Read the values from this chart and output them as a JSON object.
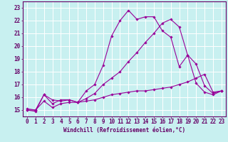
{
  "background_color": "#c8f0f0",
  "grid_color": "#aadddd",
  "line_color": "#990099",
  "xlabel": "Windchill (Refroidissement éolien,°C)",
  "xlabel_color": "#660066",
  "xlabel_fontsize": 5.5,
  "tick_color": "#660066",
  "tick_fontsize": 5.5,
  "xlim": [
    -0.5,
    23.5
  ],
  "ylim": [
    14.5,
    23.5
  ],
  "yticks": [
    15,
    16,
    17,
    18,
    19,
    20,
    21,
    22,
    23
  ],
  "xticks": [
    0,
    1,
    2,
    3,
    4,
    5,
    6,
    7,
    8,
    9,
    10,
    11,
    12,
    13,
    14,
    15,
    16,
    17,
    18,
    19,
    20,
    21,
    22,
    23
  ],
  "series": [
    {
      "x": [
        0,
        1,
        2,
        3,
        4,
        5,
        6,
        7,
        8,
        9,
        10,
        11,
        12,
        13,
        14,
        15,
        16,
        17,
        18,
        19,
        20,
        21,
        22,
        23
      ],
      "y": [
        15.0,
        14.9,
        16.2,
        15.5,
        15.8,
        15.8,
        15.6,
        16.5,
        17.0,
        18.5,
        20.8,
        22.0,
        22.8,
        22.1,
        22.3,
        22.3,
        21.2,
        20.7,
        18.4,
        19.3,
        18.6,
        16.9,
        16.3,
        16.5
      ]
    },
    {
      "x": [
        0,
        1,
        2,
        3,
        4,
        5,
        6,
        7,
        8,
        9,
        10,
        11,
        12,
        13,
        14,
        15,
        16,
        17,
        18,
        19,
        20,
        21,
        22,
        23
      ],
      "y": [
        15.1,
        15.0,
        15.7,
        15.2,
        15.5,
        15.6,
        15.6,
        15.9,
        16.3,
        17.0,
        17.5,
        18.0,
        18.8,
        19.5,
        20.3,
        21.0,
        21.8,
        22.1,
        21.5,
        19.3,
        17.1,
        16.4,
        16.2,
        16.5
      ]
    },
    {
      "x": [
        0,
        1,
        2,
        3,
        4,
        5,
        6,
        7,
        8,
        9,
        10,
        11,
        12,
        13,
        14,
        15,
        16,
        17,
        18,
        19,
        20,
        21,
        22,
        23
      ],
      "y": [
        15.0,
        15.0,
        16.2,
        15.8,
        15.7,
        15.8,
        15.6,
        15.7,
        15.8,
        16.0,
        16.2,
        16.3,
        16.4,
        16.5,
        16.5,
        16.6,
        16.7,
        16.8,
        17.0,
        17.2,
        17.5,
        17.8,
        16.4,
        16.5
      ]
    }
  ]
}
